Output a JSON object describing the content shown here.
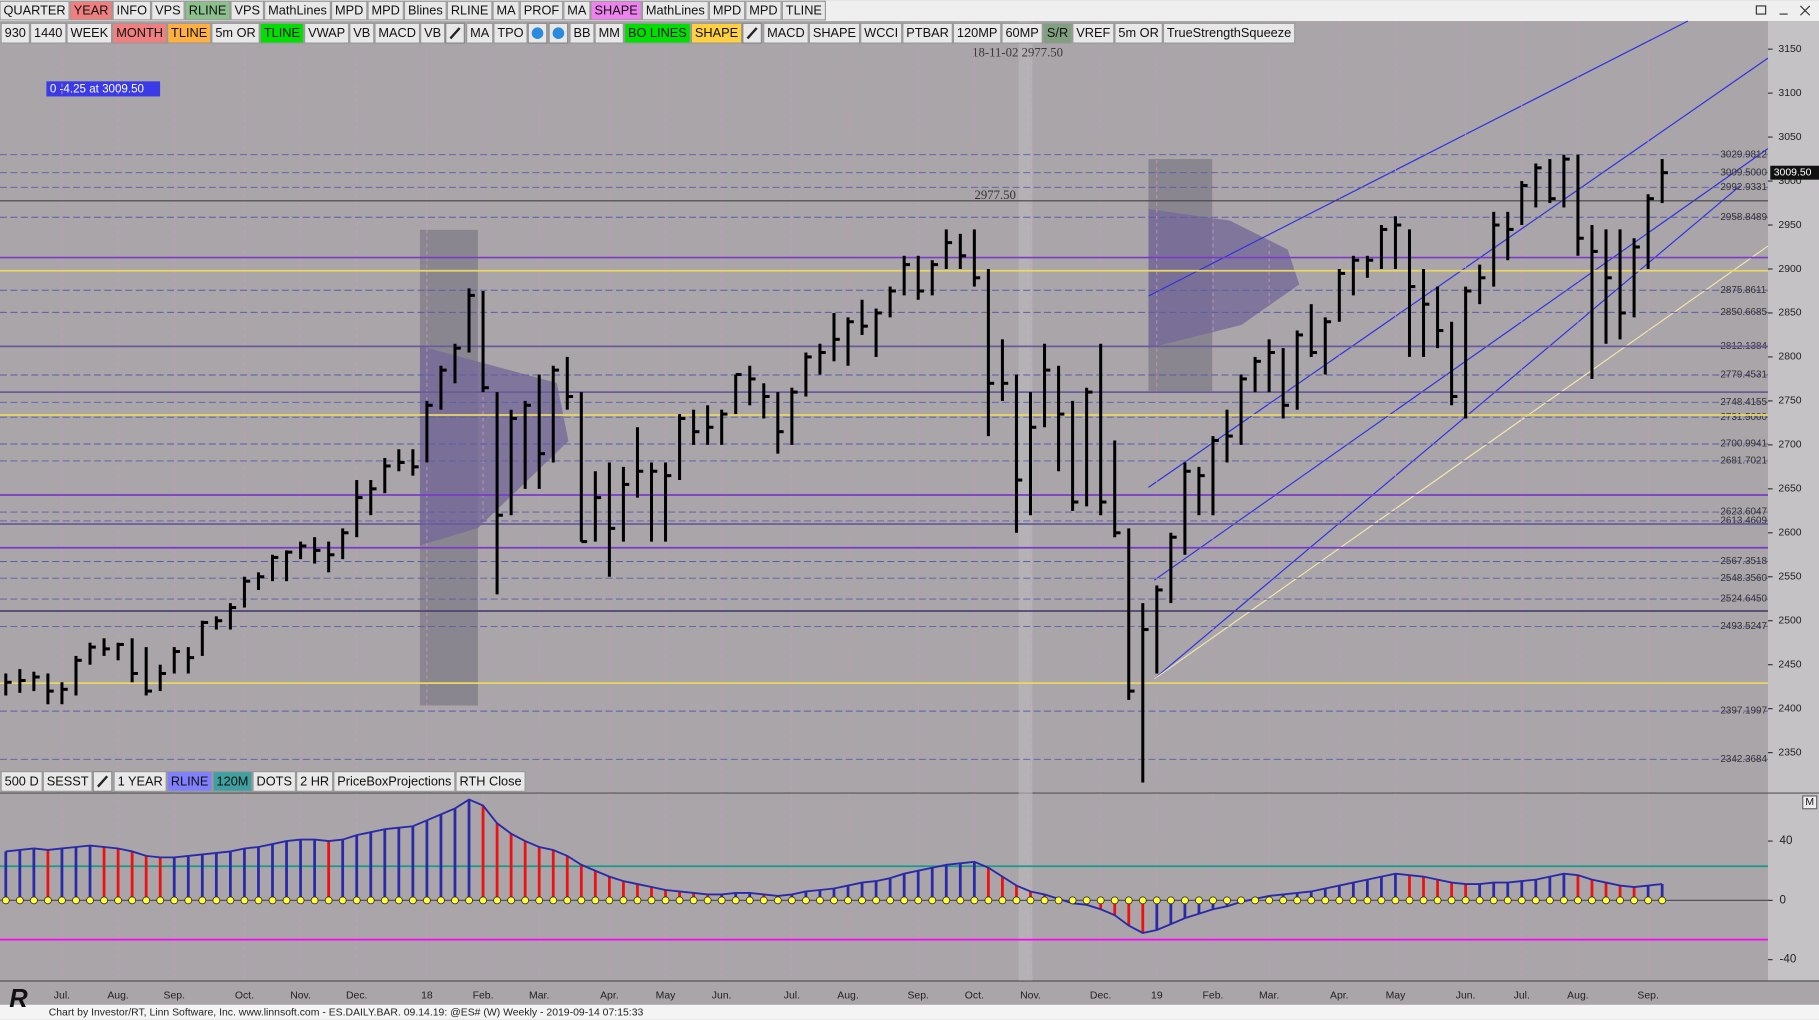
{
  "toolbar_top": [
    {
      "label": "QUARTER"
    },
    {
      "label": "YEAR",
      "color": "#f08080"
    },
    {
      "label": "INFO"
    },
    {
      "label": "VPS"
    },
    {
      "label": "RLINE",
      "color": "#8cc08c"
    },
    {
      "label": "VPS"
    },
    {
      "label": "MathLines"
    },
    {
      "label": "MPD"
    },
    {
      "label": "MPD"
    },
    {
      "label": "Blines"
    },
    {
      "label": "RLINE"
    },
    {
      "label": "MA"
    },
    {
      "label": "PROF"
    },
    {
      "label": "MA"
    },
    {
      "label": "SHAPE",
      "color": "#ee82ee"
    },
    {
      "label": "MathLines"
    },
    {
      "label": "MPD"
    },
    {
      "label": "MPD"
    },
    {
      "label": "TLINE"
    }
  ],
  "toolbar_chart": [
    {
      "label": "930"
    },
    {
      "label": "1440"
    },
    {
      "label": "WEEK"
    },
    {
      "label": "MONTH",
      "color": "#f08080"
    },
    {
      "label": "TLINE",
      "color": "#ffb040"
    },
    {
      "label": "5m OR"
    },
    {
      "label": "TLINE",
      "color": "#00e000"
    },
    {
      "label": "VWAP"
    },
    {
      "label": "VB"
    },
    {
      "label": "MACD"
    },
    {
      "label": "VB"
    },
    {
      "icon": "pencil"
    },
    {
      "label": "MA"
    },
    {
      "label": "TPO"
    },
    {
      "icon": "drop"
    },
    {
      "icon": "clock"
    },
    {
      "label": "BB"
    },
    {
      "label": "MM"
    },
    {
      "label": "BO LINES",
      "color": "#00e000"
    },
    {
      "label": "SHAPE",
      "color": "#ffd040"
    },
    {
      "icon": "pencil"
    },
    {
      "label": "MACD"
    },
    {
      "label": "SHAPE"
    },
    {
      "label": "WCCI"
    },
    {
      "label": "PTBAR"
    },
    {
      "label": "120MP"
    },
    {
      "label": "60MP"
    },
    {
      "label": "S/R",
      "color": "#80a080"
    },
    {
      "label": "VREF"
    },
    {
      "label": "5m OR"
    },
    {
      "label": "TrueStrengthSqueeze"
    }
  ],
  "toolbar_bottom": [
    {
      "label": "500 D"
    },
    {
      "label": "SESST"
    },
    {
      "icon": "pencil"
    },
    {
      "label": "1 YEAR"
    },
    {
      "label": "RLINE",
      "color": "#8080ff"
    },
    {
      "label": "120M",
      "color": "#40a0a0"
    },
    {
      "label": "DOTS"
    },
    {
      "label": "2 HR"
    },
    {
      "label": "PriceBoxProjections"
    },
    {
      "label": "RTH Close"
    }
  ],
  "chart_data": {
    "type": "ohlc",
    "color": "#000000",
    "info_box": "0  -4.25 at 3009.50",
    "crosshair_label": "18-11-02 2977.50",
    "crosshair": {
      "value": 2977.5,
      "label": "2977.50"
    },
    "last_price": {
      "value": 3009.5,
      "label": "3009.50"
    },
    "footer": "Chart by Investor/RT, Linn Software, Inc. www.linnsoft.com - ES.DAILY.BAR.  09.14.19: @ES# (W) Weekly - 2019-09-14 07:15:33",
    "categories": [
      null,
      null,
      null,
      null,
      "Jul.",
      null,
      null,
      null,
      "Aug.",
      null,
      null,
      null,
      "Sep.",
      null,
      null,
      null,
      null,
      "Oct.",
      null,
      null,
      null,
      "Nov.",
      null,
      null,
      null,
      "Dec.",
      null,
      null,
      null,
      null,
      "18",
      null,
      null,
      null,
      "Feb.",
      null,
      null,
      null,
      "Mar.",
      null,
      null,
      null,
      null,
      "Apr.",
      null,
      null,
      null,
      "May",
      null,
      null,
      null,
      "Jun.",
      null,
      null,
      null,
      null,
      "Jul.",
      null,
      null,
      null,
      "Aug.",
      null,
      null,
      null,
      null,
      "Sep.",
      null,
      null,
      null,
      "Oct.",
      null,
      null,
      null,
      "Nov.",
      null,
      null,
      null,
      null,
      "Dec.",
      null,
      null,
      null,
      "19",
      null,
      null,
      null,
      "Feb.",
      null,
      null,
      null,
      "Mar.",
      null,
      null,
      null,
      null,
      "Apr.",
      null,
      null,
      null,
      "May",
      null,
      null,
      null,
      null,
      "Jun.",
      null,
      null,
      null,
      "Jul.",
      null,
      null,
      null,
      "Aug.",
      null,
      null,
      null,
      null,
      "Sep.",
      null
    ],
    "high": [
      2440,
      2445,
      2442,
      2440,
      2430,
      2460,
      2475,
      2480,
      2475,
      2480,
      2470,
      2450,
      2470,
      2470,
      2500,
      2505,
      2520,
      2550,
      2555,
      2575,
      2580,
      2590,
      2595,
      2590,
      2605,
      2660,
      2660,
      2685,
      2695,
      2695,
      2750,
      2790,
      2815,
      2878,
      2875,
      2760,
      2740,
      2750,
      2780,
      2790,
      2800,
      2760,
      2670,
      2680,
      2675,
      2720,
      2680,
      2680,
      2735,
      2740,
      2745,
      2740,
      2780,
      2790,
      2770,
      2760,
      2765,
      2805,
      2815,
      2850,
      2845,
      2865,
      2855,
      2880,
      2915,
      2915,
      2910,
      2945,
      2940,
      2945,
      2900,
      2820,
      2780,
      2760,
      2815,
      2790,
      2750,
      2765,
      2815,
      2705,
      2605,
      2520,
      2540,
      2600,
      2680,
      2675,
      2710,
      2740,
      2780,
      2800,
      2820,
      2810,
      2830,
      2860,
      2845,
      2900,
      2915,
      2915,
      2950,
      2960,
      2945,
      2900,
      2880,
      2840,
      2880,
      2905,
      2965,
      2965,
      3000,
      3020,
      3025,
      3030,
      3030,
      2950,
      2945,
      2945,
      2935,
      2985,
      3025
    ],
    "low": [
      2415,
      2418,
      2420,
      2405,
      2405,
      2415,
      2450,
      2460,
      2455,
      2430,
      2415,
      2420,
      2440,
      2440,
      2460,
      2490,
      2490,
      2515,
      2535,
      2545,
      2545,
      2570,
      2565,
      2555,
      2570,
      2595,
      2620,
      2645,
      2670,
      2665,
      2680,
      2740,
      2770,
      2805,
      2760,
      2530,
      2620,
      2650,
      2650,
      2680,
      2740,
      2590,
      2590,
      2550,
      2590,
      2640,
      2590,
      2590,
      2660,
      2700,
      2700,
      2700,
      2735,
      2745,
      2730,
      2690,
      2700,
      2755,
      2780,
      2795,
      2790,
      2825,
      2800,
      2845,
      2870,
      2865,
      2870,
      2900,
      2900,
      2880,
      2710,
      2750,
      2600,
      2620,
      2720,
      2670,
      2625,
      2630,
      2620,
      2595,
      2410,
      2316,
      2440,
      2520,
      2575,
      2620,
      2620,
      2680,
      2700,
      2760,
      2760,
      2730,
      2740,
      2800,
      2780,
      2840,
      2870,
      2890,
      2900,
      2900,
      2800,
      2800,
      2810,
      2745,
      2730,
      2860,
      2880,
      2910,
      2950,
      2970,
      2975,
      2970,
      2915,
      2775,
      2815,
      2820,
      2845,
      2900,
      2975
    ],
    "close": [
      2430,
      2432,
      2436,
      2420,
      2422,
      2455,
      2470,
      2468,
      2473,
      2440,
      2420,
      2440,
      2465,
      2458,
      2498,
      2500,
      2515,
      2545,
      2550,
      2572,
      2578,
      2585,
      2580,
      2575,
      2600,
      2640,
      2650,
      2676,
      2680,
      2675,
      2745,
      2785,
      2810,
      2870,
      2765,
      2620,
      2730,
      2745,
      2690,
      2785,
      2755,
      2590,
      2640,
      2605,
      2655,
      2670,
      2670,
      2665,
      2730,
      2715,
      2720,
      2735,
      2780,
      2775,
      2755,
      2715,
      2760,
      2800,
      2805,
      2820,
      2840,
      2835,
      2850,
      2875,
      2905,
      2875,
      2905,
      2930,
      2915,
      2890,
      2770,
      2770,
      2660,
      2720,
      2785,
      2735,
      2635,
      2760,
      2635,
      2600,
      2420,
      2490,
      2535,
      2595,
      2670,
      2665,
      2705,
      2710,
      2775,
      2795,
      2805,
      2745,
      2825,
      2805,
      2840,
      2895,
      2910,
      2910,
      2945,
      2950,
      2880,
      2860,
      2830,
      2755,
      2875,
      2890,
      2950,
      2945,
      2995,
      3015,
      2980,
      3025,
      2935,
      2920,
      2890,
      2850,
      2925,
      2980,
      3009.5
    ],
    "ylim": [
      2306,
      3182
    ],
    "yticks": [
      3150,
      3100,
      3050,
      3000,
      2950,
      2900,
      2850,
      2800,
      2750,
      2700,
      2650,
      2600,
      2550,
      2500,
      2450,
      2400,
      2350
    ],
    "levels": [
      3029.9812,
      {
        "value": 3009.5,
        "label": "3009.5000"
      },
      2992.9331,
      2958.8489,
      2875.8611,
      2850.6685,
      2812.1384,
      2779.4531,
      2748.4155,
      {
        "value": 2731.5,
        "label": "2731.5000"
      },
      2700.9941,
      2681.7021,
      2623.6047,
      2613.4609,
      2567.3518,
      {
        "value": 2548.356,
        "label": "2548.3560"
      },
      {
        "value": 2524.645,
        "label": "2524.6450"
      },
      2493.5247,
      2397.1997,
      2342.3684
    ],
    "hlines": [
      {
        "value": 2913,
        "color": "#7a3cc8"
      },
      {
        "value": 2812,
        "color": "#6a5c9a"
      },
      {
        "value": 2760,
        "color": "#6a5c9a"
      },
      {
        "value": 2643,
        "color": "#7a3cc8"
      },
      {
        "value": 2610,
        "color": "#6a5c9a"
      },
      {
        "value": 2583,
        "color": "#7a3cc8"
      },
      {
        "value": 2511,
        "color": "#4e4670"
      },
      {
        "value": 2898,
        "color": "#e8d860"
      },
      {
        "value": 2734,
        "color": "#e8d860"
      },
      {
        "value": 2429,
        "color": "#e8d860"
      }
    ],
    "oscillator": {
      "label": "M",
      "rising_color": "#2a2aa8",
      "falling_color": "#ee1111",
      "dot_color": "#ffff40",
      "values": [
        33,
        34,
        35,
        34,
        35,
        36,
        37,
        36,
        35,
        33,
        30,
        29,
        29,
        30,
        31,
        32,
        33,
        35,
        36,
        38,
        40,
        41,
        41,
        40,
        41,
        44,
        46,
        48,
        49,
        50,
        54,
        58,
        62,
        68,
        64,
        52,
        45,
        40,
        36,
        34,
        30,
        24,
        20,
        16,
        13,
        11,
        9,
        7,
        6,
        5,
        4,
        4,
        5,
        5,
        4,
        3,
        4,
        6,
        7,
        8,
        10,
        12,
        13,
        15,
        18,
        20,
        22,
        24,
        25,
        26,
        22,
        16,
        10,
        6,
        4,
        1,
        -2,
        -3,
        -6,
        -10,
        -17,
        -22,
        -20,
        -16,
        -12,
        -9,
        -6,
        -4,
        -1,
        1,
        3,
        4,
        5,
        6,
        8,
        10,
        12,
        14,
        16,
        18,
        17,
        16,
        14,
        12,
        11,
        11,
        12,
        12,
        13,
        14,
        16,
        18,
        17,
        14,
        12,
        10,
        9,
        10,
        11
      ],
      "ylim": [
        -54,
        72
      ],
      "yticks": [
        40,
        0,
        -40
      ],
      "hlines": [
        {
          "value": 23,
          "color": "#1a9a8a"
        },
        {
          "value": -26.5,
          "color": "#ff00ff"
        }
      ]
    }
  }
}
